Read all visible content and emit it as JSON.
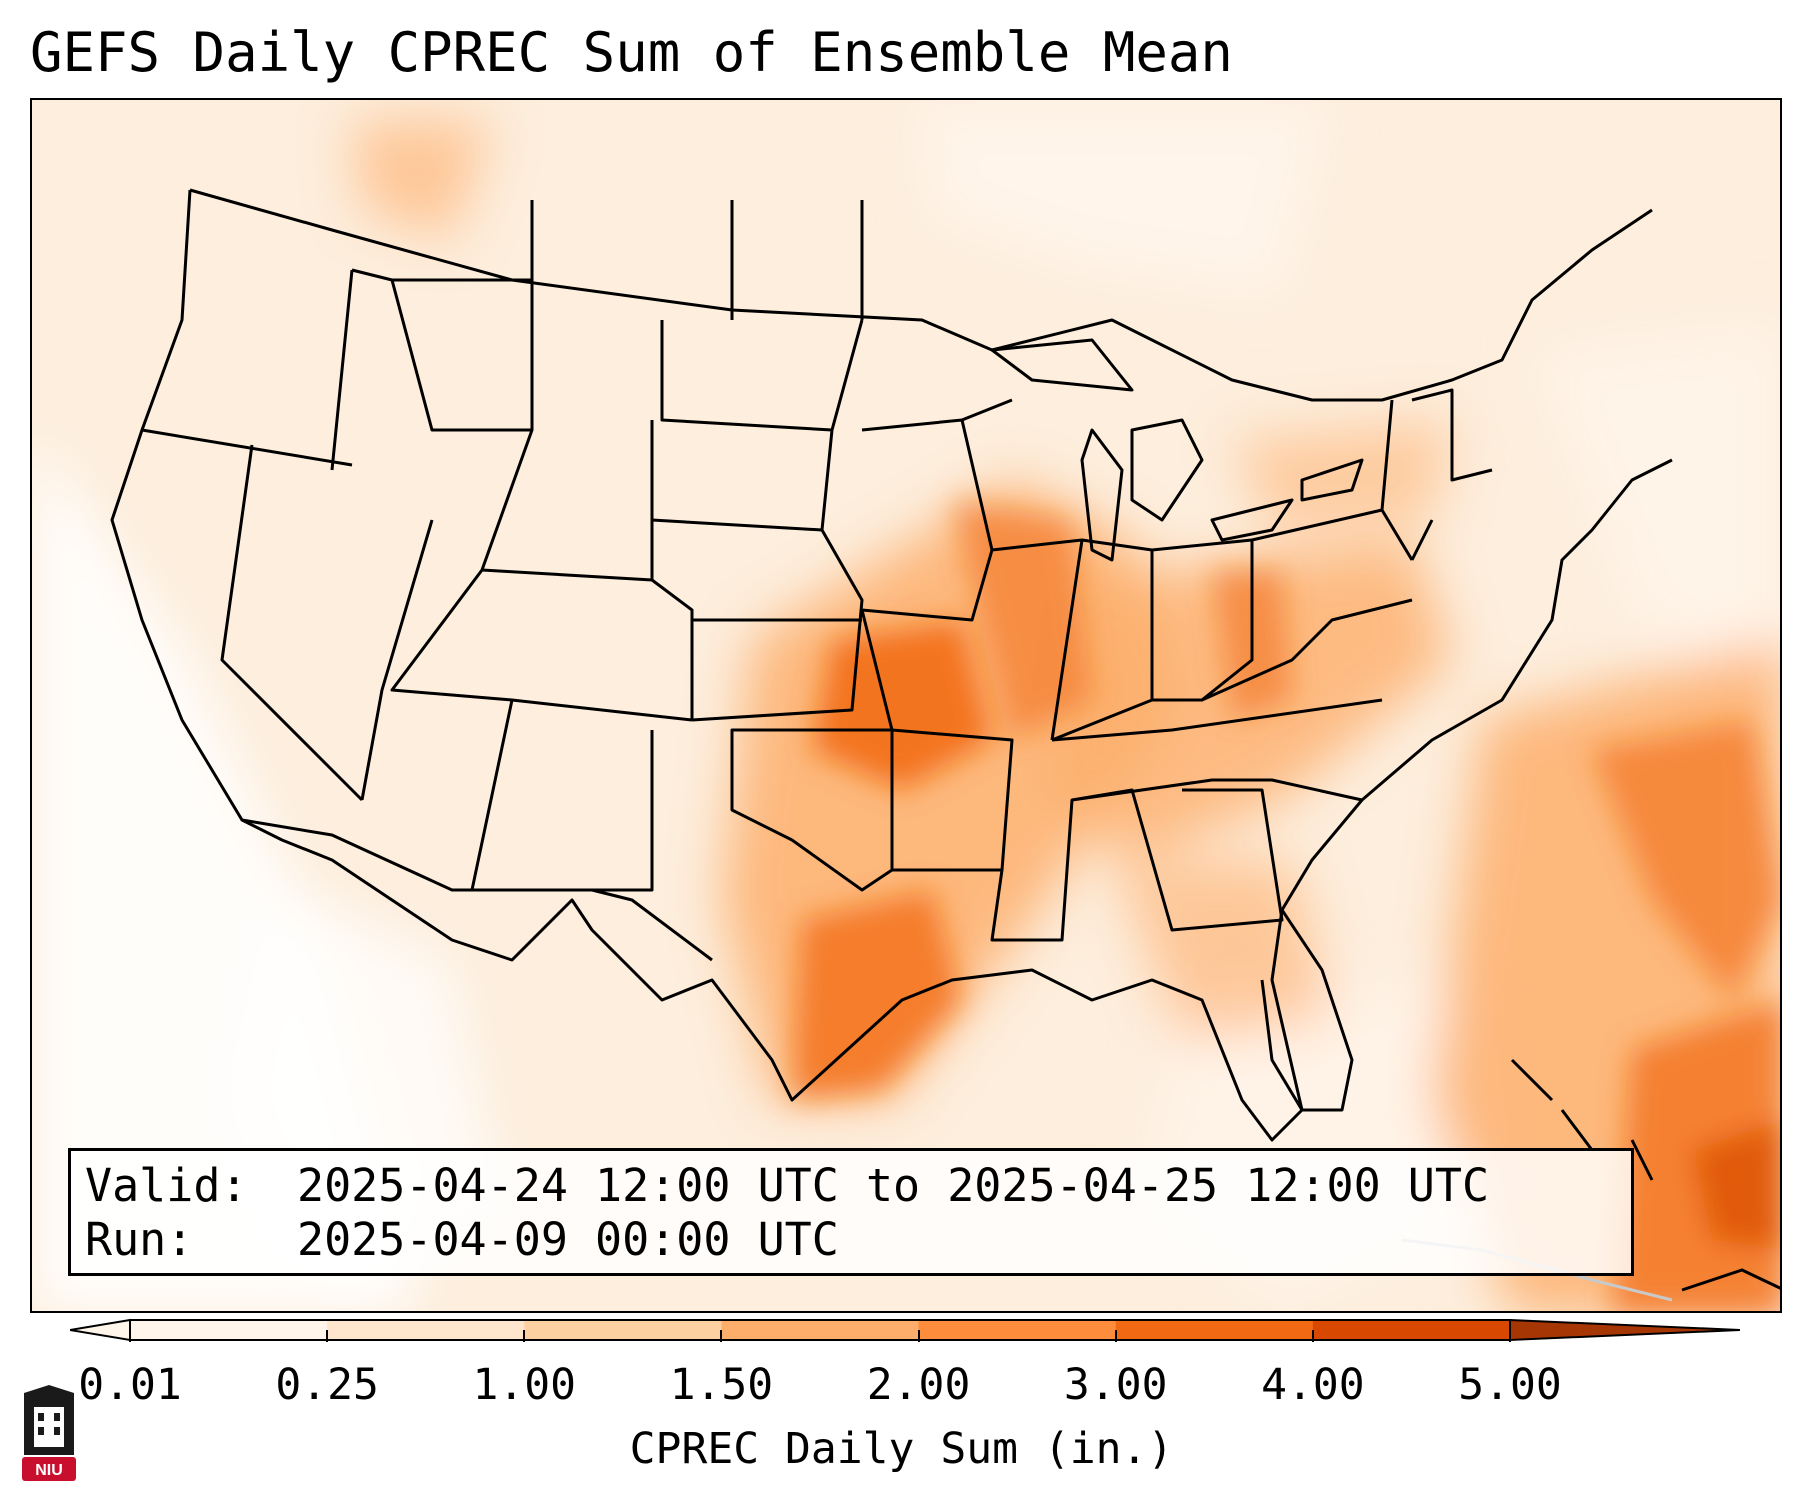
{
  "title": "GEFS Daily CPREC Sum of Ensemble Mean",
  "info": {
    "valid_label": "Valid:",
    "valid_value": "2025-04-24 12:00 UTC to 2025-04-25 12:00 UTC",
    "run_label": "Run:",
    "run_value": "2025-04-09 00:00 UTC"
  },
  "colorbar": {
    "label": "CPREC Daily Sum (in.)",
    "ticks": [
      "0.01",
      "0.25",
      "1.00",
      "1.50",
      "2.00",
      "3.00",
      "4.00",
      "5.00"
    ],
    "colors": [
      "#fff5eb",
      "#fee6ce",
      "#fdd0a2",
      "#fdae6b",
      "#fd8d3c",
      "#f16913",
      "#d94801",
      "#a63603"
    ],
    "extend": "both"
  },
  "map": {
    "projection": "Lambert conformal CONUS",
    "field_colors": {
      "low": "#fee6ce",
      "mid": "#fdae6b",
      "high": "#f16913",
      "max": "#d94801"
    }
  },
  "logo": {
    "text": "NIU",
    "colors": {
      "red": "#c8102e",
      "dark": "#1a1a1a"
    }
  }
}
